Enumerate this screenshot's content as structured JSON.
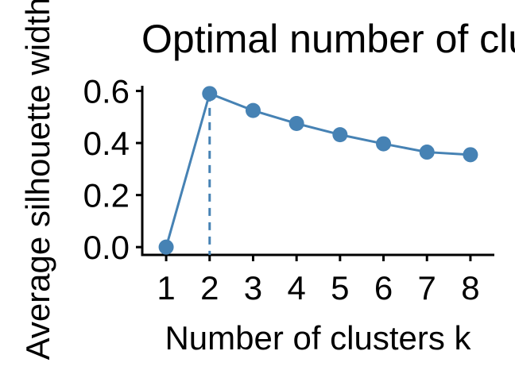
{
  "chart_data": {
    "type": "line",
    "title": "Optimal number of clusters",
    "xlabel": "Number of clusters k",
    "ylabel": "Average silhouette width",
    "x": [
      1,
      2,
      3,
      4,
      5,
      6,
      7,
      8
    ],
    "y": [
      0.0,
      0.59,
      0.525,
      0.475,
      0.432,
      0.397,
      0.365,
      0.355
    ],
    "xlim": [
      0.45,
      8.55
    ],
    "ylim": [
      -0.03,
      0.62
    ],
    "x_ticks": [
      "1",
      "2",
      "3",
      "4",
      "5",
      "6",
      "7",
      "8"
    ],
    "y_ticks": [
      0.0,
      0.2,
      0.4,
      0.6
    ],
    "y_tick_labels": [
      "0.0",
      "0.2",
      "0.4",
      "0.6"
    ],
    "optimal_k": 2,
    "grid": false,
    "line_color": "#4682B4"
  }
}
